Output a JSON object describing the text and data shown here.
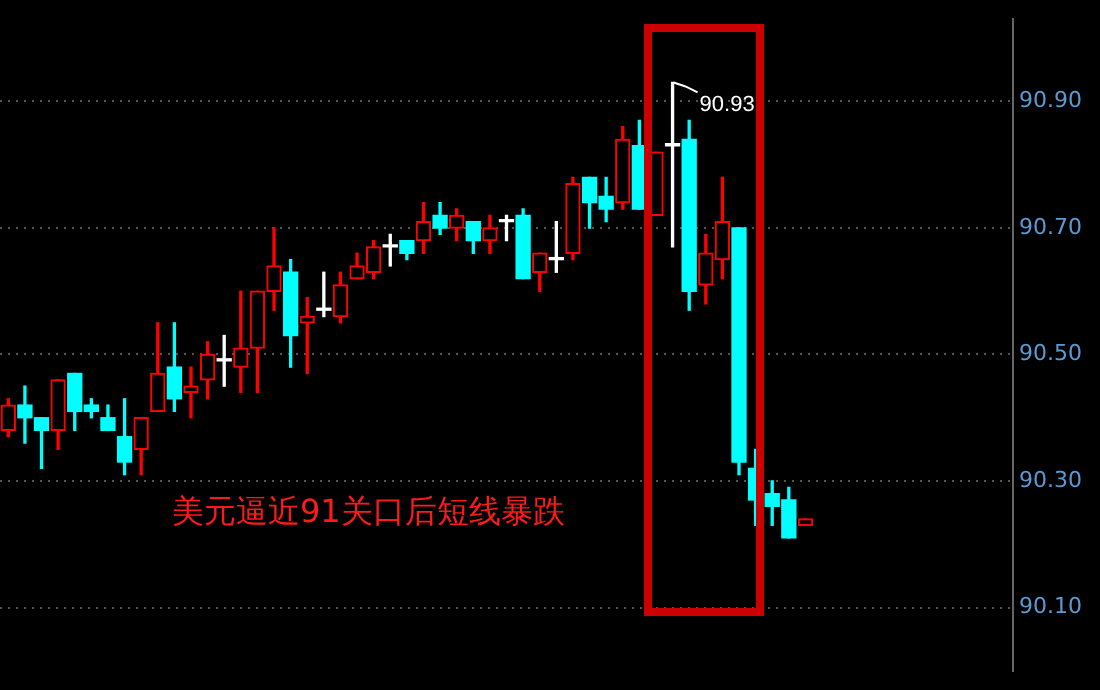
{
  "chart_data": {
    "type": "candlestick",
    "categories": [
      null,
      null,
      null,
      null,
      null,
      null,
      null,
      null,
      null,
      null,
      null,
      null,
      null,
      null,
      null,
      null,
      null,
      null,
      null,
      null,
      null,
      null,
      null,
      null,
      null,
      null,
      null,
      null,
      null,
      null,
      null,
      null,
      null,
      null,
      null,
      null,
      null,
      null,
      null,
      null,
      null,
      null,
      null,
      null,
      null,
      null,
      null,
      null,
      null,
      null,
      null,
      null,
      null,
      null,
      null,
      null,
      null,
      null,
      null,
      null,
      null
    ],
    "ohlc": [
      [
        90.38,
        90.43,
        90.37,
        90.42
      ],
      [
        90.42,
        90.45,
        90.36,
        90.4
      ],
      [
        90.4,
        90.4,
        90.32,
        90.38
      ],
      [
        90.38,
        90.46,
        90.35,
        90.46
      ],
      [
        90.47,
        90.47,
        90.38,
        90.41
      ],
      [
        90.42,
        90.43,
        90.4,
        90.41
      ],
      [
        90.4,
        90.42,
        90.38,
        90.38
      ],
      [
        90.37,
        90.43,
        90.31,
        90.33
      ],
      [
        90.35,
        90.4,
        90.31,
        90.4
      ],
      [
        90.41,
        90.55,
        90.41,
        90.47
      ],
      [
        90.48,
        90.55,
        90.41,
        90.43
      ],
      [
        90.44,
        90.48,
        90.4,
        90.45
      ],
      [
        90.46,
        90.52,
        90.43,
        90.5
      ],
      [
        90.49,
        90.53,
        90.45,
        90.49
      ],
      [
        90.48,
        90.6,
        90.44,
        90.51
      ],
      [
        90.51,
        90.6,
        90.44,
        90.6
      ],
      [
        90.6,
        90.7,
        90.57,
        90.64
      ],
      [
        90.63,
        90.65,
        90.48,
        90.53
      ],
      [
        90.55,
        90.59,
        90.47,
        90.56
      ],
      [
        90.57,
        90.63,
        90.56,
        90.57
      ],
      [
        90.56,
        90.63,
        90.55,
        90.61
      ],
      [
        90.62,
        90.66,
        90.62,
        90.64
      ],
      [
        90.63,
        90.68,
        90.62,
        90.67
      ],
      [
        90.67,
        90.69,
        90.64,
        90.67
      ],
      [
        90.68,
        90.68,
        90.65,
        90.66
      ],
      [
        90.68,
        90.74,
        90.66,
        90.71
      ],
      [
        90.72,
        90.74,
        90.69,
        90.7
      ],
      [
        90.7,
        90.73,
        90.68,
        90.72
      ],
      [
        90.71,
        90.71,
        90.66,
        90.68
      ],
      [
        90.68,
        90.72,
        90.66,
        90.7
      ],
      [
        90.71,
        90.72,
        90.68,
        90.71
      ],
      [
        90.72,
        90.73,
        90.62,
        90.62
      ],
      [
        90.63,
        90.66,
        90.6,
        90.66
      ],
      [
        90.65,
        90.71,
        90.63,
        90.65
      ],
      [
        90.66,
        90.78,
        90.65,
        90.77
      ],
      [
        90.78,
        90.78,
        90.7,
        90.74
      ],
      [
        90.75,
        90.78,
        90.71,
        90.73
      ],
      [
        90.74,
        90.86,
        90.73,
        90.84
      ],
      [
        90.83,
        90.87,
        90.73,
        90.73
      ],
      [
        90.72,
        90.82,
        90.72,
        90.82
      ],
      [
        90.83,
        90.93,
        90.67,
        90.83
      ],
      [
        90.84,
        90.87,
        90.57,
        90.6
      ],
      [
        90.61,
        90.69,
        90.58,
        90.66
      ],
      [
        90.65,
        90.78,
        90.62,
        90.71
      ],
      [
        90.7,
        90.7,
        90.31,
        90.33
      ],
      [
        90.32,
        90.35,
        90.23,
        90.27
      ],
      [
        90.28,
        90.3,
        90.23,
        90.26
      ],
      [
        90.27,
        90.29,
        90.21,
        90.21
      ],
      [
        90.23,
        90.24,
        90.23,
        90.24
      ],
      null,
      null,
      null,
      null,
      null,
      null,
      null,
      null,
      null,
      null,
      null,
      null
    ],
    "colors": [
      "#ff0000",
      "#00ffff",
      "#00ffff",
      "#ff0000",
      "#00ffff",
      "#00ffff",
      "#00ffff",
      "#00ffff",
      "#ff0000",
      "#ff0000",
      "#00ffff",
      "#ff0000",
      "#ff0000",
      "#ffffff",
      "#ff0000",
      "#ff0000",
      "#ff0000",
      "#00ffff",
      "#ff0000",
      "#ffffff",
      "#ff0000",
      "#ff0000",
      "#ff0000",
      "#ffffff",
      "#00ffff",
      "#ff0000",
      "#00ffff",
      "#ff0000",
      "#00ffff",
      "#ff0000",
      "#ffffff",
      "#00ffff",
      "#ff0000",
      "#ffffff",
      "#ff0000",
      "#00ffff",
      "#00ffff",
      "#ff0000",
      "#00ffff",
      "#ff0000",
      "#ffffff",
      "#00ffff",
      "#ff0000",
      "#ff0000",
      "#00ffff",
      "#00ffff",
      "#00ffff",
      "#00ffff",
      "#ff0000",
      null,
      null,
      null,
      null,
      null,
      null,
      null,
      null,
      null,
      null,
      null,
      null
    ],
    "ylim": [
      90.0,
      91.03
    ],
    "yticks": [
      {
        "value": 90.1,
        "label": "90.10"
      },
      {
        "value": 90.3,
        "label": "90.30"
      },
      {
        "value": 90.5,
        "label": "90.50"
      },
      {
        "value": 90.7,
        "label": "90.70"
      },
      {
        "value": 90.9,
        "label": "90.90"
      }
    ],
    "grid": "y",
    "tick_labels": "y",
    "annotations": [
      "90.93",
      "美元逼近91关口后短线暴跌"
    ]
  }
}
